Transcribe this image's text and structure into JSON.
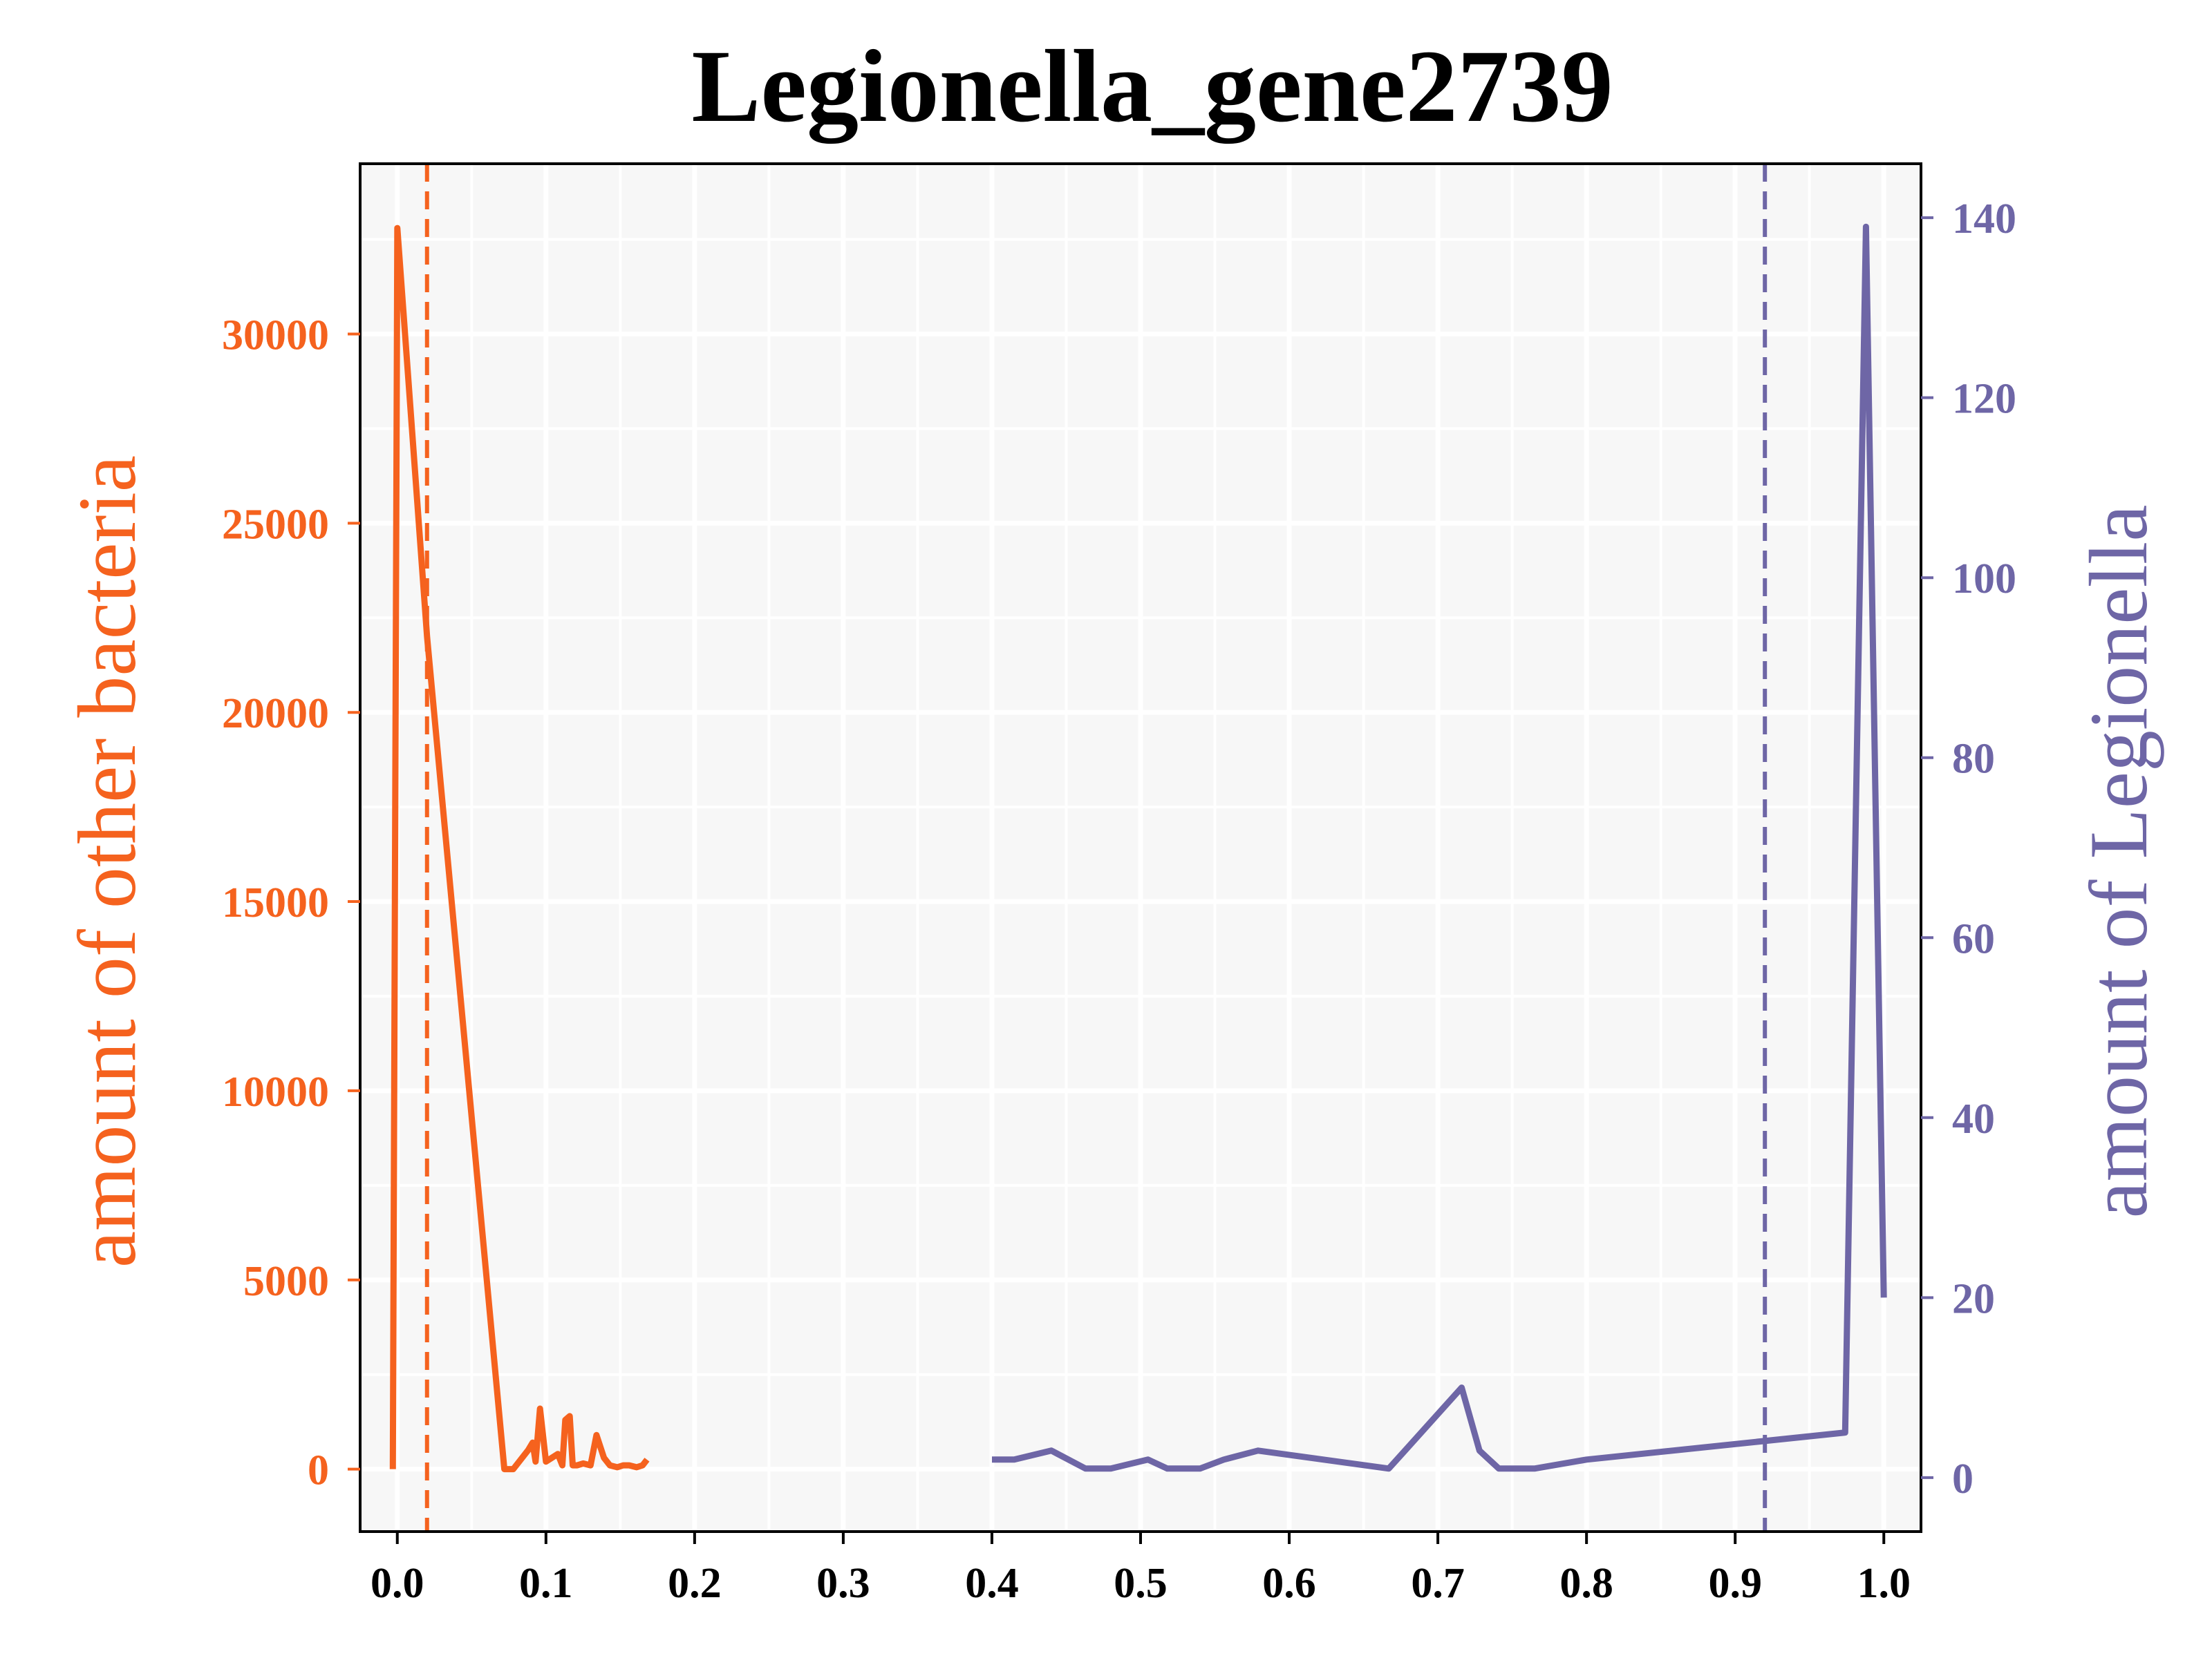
{
  "colors": {
    "left_series": "#f5621e",
    "right_series": "#6e66a6",
    "plot_bg": "#f7f7f7",
    "grid": "#ffffff",
    "text": "#000000"
  },
  "chart_data": {
    "type": "line",
    "title": "Legionella_gene2739",
    "xlabel": "",
    "ylabel_left": "amount of other bacteria",
    "ylabel_right": "amount of Legionella",
    "xlim": [
      -0.025,
      1.025
    ],
    "ylim_left": [
      -1650,
      34500
    ],
    "ylim_right": [
      -6,
      146
    ],
    "x_ticks": [
      "0.0",
      "0.1",
      "0.2",
      "0.3",
      "0.4",
      "0.5",
      "0.6",
      "0.7",
      "0.8",
      "0.9",
      "1.0"
    ],
    "y_left_ticks": [
      "0",
      "5000",
      "10000",
      "15000",
      "20000",
      "25000",
      "30000"
    ],
    "y_right_ticks": [
      "0",
      "20",
      "40",
      "60",
      "80",
      "100",
      "120",
      "140"
    ],
    "grid": true,
    "legend": "none",
    "series": [
      {
        "axis": "left",
        "x": [
          -0.003,
          0.0,
          0.02,
          0.072,
          0.078,
          0.088,
          0.091,
          0.093,
          0.096,
          0.1,
          0.104,
          0.108,
          0.111,
          0.113,
          0.116,
          0.118,
          0.121,
          0.125,
          0.13,
          0.134,
          0.139,
          0.143,
          0.148,
          0.152,
          0.156,
          0.161,
          0.165,
          0.168
        ],
        "y": [
          0,
          32800,
          22000,
          0,
          0,
          500,
          700,
          200,
          1600,
          200,
          300,
          400,
          100,
          1300,
          1400,
          100,
          100,
          150,
          100,
          900,
          300,
          100,
          50,
          100,
          100,
          50,
          100,
          250
        ]
      },
      {
        "axis": "right",
        "x": [
          0.4,
          0.415,
          0.44,
          0.463,
          0.48,
          0.505,
          0.518,
          0.54,
          0.556,
          0.579,
          0.667,
          0.716,
          0.728,
          0.741,
          0.765,
          0.8,
          0.974,
          0.988,
          1.0
        ],
        "y": [
          2,
          2,
          3,
          1,
          1,
          2,
          1,
          1,
          2,
          3,
          1,
          10,
          3,
          1,
          1,
          2,
          5,
          139,
          20
        ]
      }
    ],
    "vlines": [
      {
        "axis": "left",
        "x": 0.02
      },
      {
        "axis": "right",
        "x": 0.92
      }
    ]
  }
}
